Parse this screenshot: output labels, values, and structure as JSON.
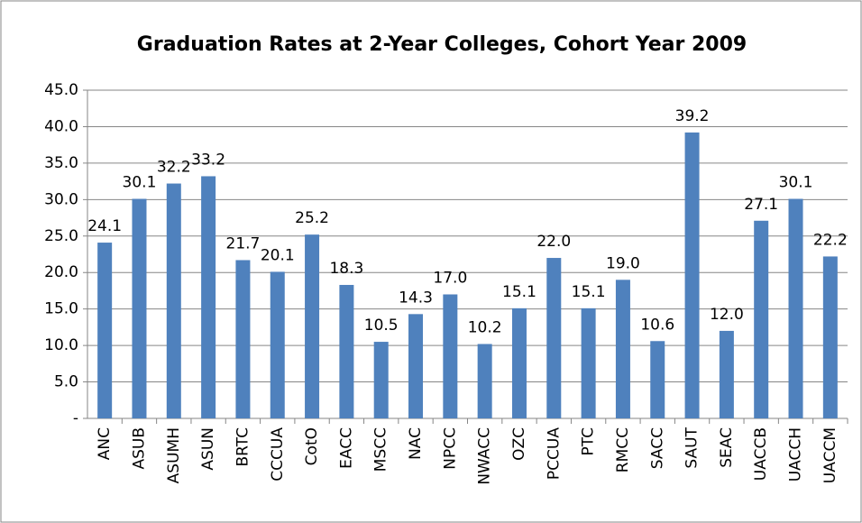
{
  "chart_data": {
    "type": "bar",
    "title": "Graduation Rates at 2-Year Colleges, Cohort Year 2009",
    "categories": [
      "ANC",
      "ASUB",
      "ASUMH",
      "ASUN",
      "BRTC",
      "CCCUA",
      "CotO",
      "EACC",
      "MSCC",
      "NAC",
      "NPCC",
      "NWACC",
      "OZC",
      "PCCUA",
      "PTC",
      "RMCC",
      "SACC",
      "SAUT",
      "SEAC",
      "UACCB",
      "UACCH",
      "UACCM"
    ],
    "values": [
      24.1,
      30.1,
      32.2,
      33.2,
      21.7,
      20.1,
      25.2,
      18.3,
      10.5,
      14.3,
      17.0,
      10.2,
      15.1,
      22.0,
      15.1,
      19.0,
      10.6,
      39.2,
      12.0,
      27.1,
      30.1,
      22.2
    ],
    "value_labels": [
      "24.1",
      "30.1",
      "32.2",
      "33.2",
      "21.7",
      "20.1",
      "25.2",
      "18.3",
      "10.5",
      "14.3",
      "17.0",
      "10.2",
      "15.1",
      "22.0",
      "15.1",
      "19.0",
      "10.6",
      "39.2",
      "12.0",
      "27.1",
      "30.1",
      "22.2"
    ],
    "color": "#4f81bd",
    "ylim": [
      0,
      45
    ],
    "yticks": [
      {
        "value": 0,
        "label": "-"
      },
      {
        "value": 5,
        "label": "5.0"
      },
      {
        "value": 10,
        "label": "10.0"
      },
      {
        "value": 15,
        "label": "15.0"
      },
      {
        "value": 20,
        "label": "20.0"
      },
      {
        "value": 25,
        "label": "25.0"
      },
      {
        "value": 30,
        "label": "30.0"
      },
      {
        "value": 35,
        "label": "35.0"
      },
      {
        "value": 40,
        "label": "40.0"
      },
      {
        "value": 45,
        "label": "45.0"
      }
    ],
    "grid": true
  }
}
